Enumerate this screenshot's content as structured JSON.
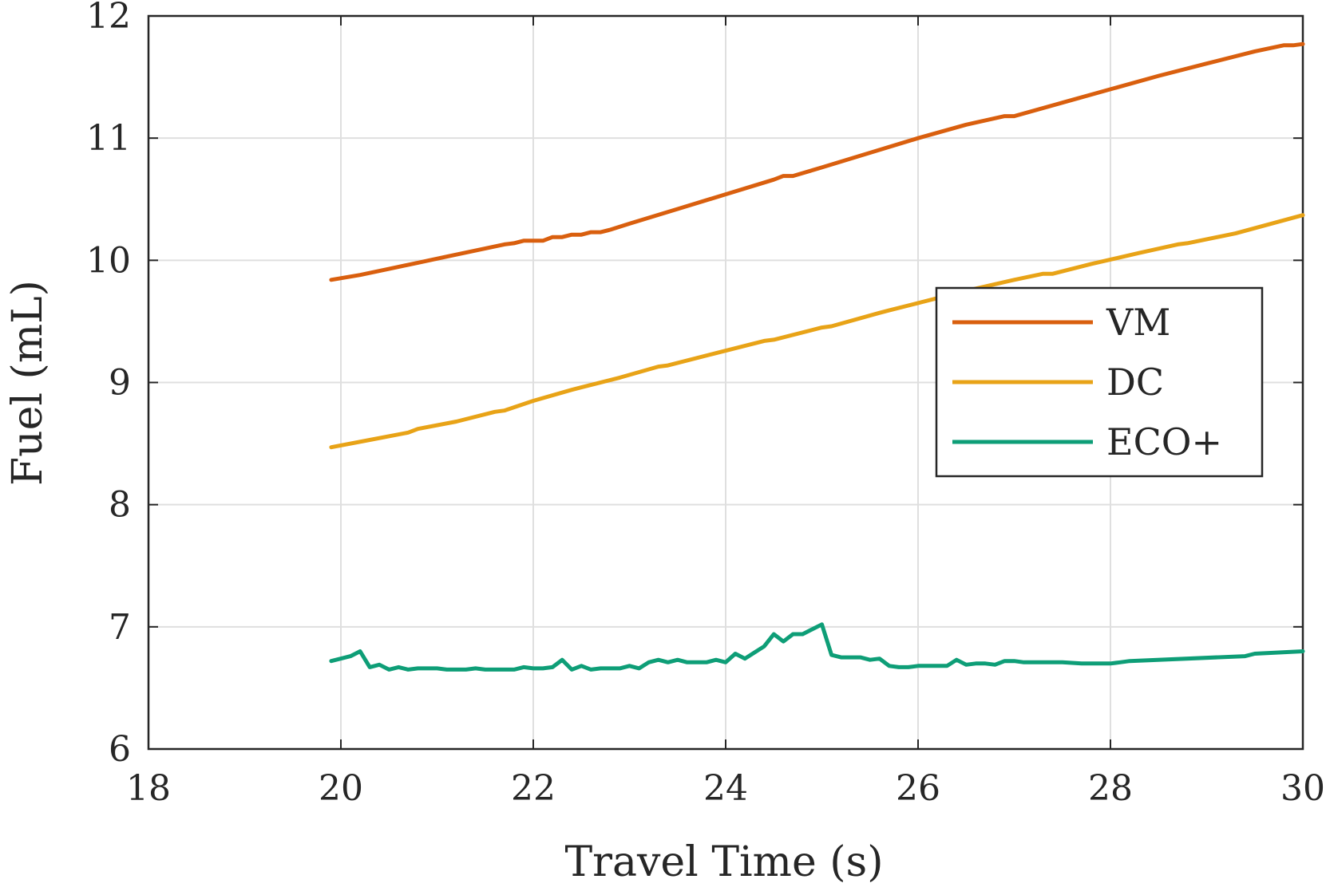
{
  "chart_data": {
    "type": "line",
    "xlabel": "Travel Time (s)",
    "ylabel": "Fuel (mL)",
    "xlim": [
      18,
      30
    ],
    "ylim": [
      6,
      12
    ],
    "xticks": [
      18,
      20,
      22,
      24,
      26,
      28,
      30
    ],
    "yticks": [
      6,
      7,
      8,
      9,
      10,
      11,
      12
    ],
    "grid": true,
    "legend_position": "right",
    "series": [
      {
        "name": "VM",
        "color": "#d95f0e",
        "x": [
          19.9,
          20.2,
          20.5,
          20.8,
          21.1,
          21.4,
          21.7,
          21.8,
          21.9,
          22.1,
          22.2,
          22.3,
          22.4,
          22.5,
          22.6,
          22.7,
          22.8,
          23.0,
          23.5,
          24.0,
          24.5,
          24.6,
          24.7,
          25.0,
          25.5,
          26.0,
          26.5,
          26.9,
          27.0,
          27.5,
          28.0,
          28.5,
          29.0,
          29.5,
          29.8,
          29.9,
          30.0
        ],
        "y": [
          9.84,
          9.88,
          9.93,
          9.98,
          10.03,
          10.08,
          10.13,
          10.14,
          10.16,
          10.16,
          10.19,
          10.19,
          10.21,
          10.21,
          10.23,
          10.23,
          10.25,
          10.3,
          10.42,
          10.54,
          10.66,
          10.69,
          10.69,
          10.76,
          10.88,
          11.0,
          11.11,
          11.18,
          11.18,
          11.29,
          11.4,
          11.51,
          11.61,
          11.71,
          11.76,
          11.76,
          11.77
        ]
      },
      {
        "name": "DC",
        "color": "#e8a317",
        "x": [
          19.9,
          20.3,
          20.7,
          20.8,
          21.2,
          21.6,
          21.7,
          22.0,
          22.4,
          22.5,
          22.9,
          23.3,
          23.4,
          23.9,
          24.4,
          24.5,
          25.0,
          25.1,
          25.6,
          25.7,
          26.0,
          26.5,
          27.0,
          27.3,
          27.4,
          27.8,
          28.3,
          28.7,
          28.8,
          29.3,
          30.0
        ],
        "y": [
          8.47,
          8.53,
          8.59,
          8.62,
          8.68,
          8.76,
          8.77,
          8.85,
          8.94,
          8.96,
          9.04,
          9.13,
          9.14,
          9.24,
          9.34,
          9.35,
          9.45,
          9.46,
          9.57,
          9.59,
          9.65,
          9.75,
          9.84,
          9.89,
          9.89,
          9.97,
          10.06,
          10.13,
          10.14,
          10.22,
          10.37
        ]
      },
      {
        "name": "ECO+",
        "color": "#0e9e77",
        "x": [
          19.9,
          20.1,
          20.2,
          20.3,
          20.4,
          20.5,
          20.6,
          20.7,
          20.8,
          20.9,
          21.0,
          21.1,
          21.2,
          21.3,
          21.4,
          21.5,
          21.6,
          21.7,
          21.8,
          21.9,
          22.0,
          22.1,
          22.2,
          22.3,
          22.4,
          22.5,
          22.6,
          22.7,
          22.8,
          22.9,
          23.0,
          23.1,
          23.2,
          23.3,
          23.4,
          23.5,
          23.6,
          23.7,
          23.8,
          23.9,
          24.0,
          24.1,
          24.2,
          24.3,
          24.4,
          24.5,
          24.6,
          24.7,
          24.8,
          24.9,
          25.0,
          25.1,
          25.2,
          25.3,
          25.4,
          25.5,
          25.6,
          25.7,
          25.8,
          25.9,
          26.0,
          26.2,
          26.3,
          26.4,
          26.5,
          26.6,
          26.7,
          26.8,
          26.9,
          27.0,
          27.1,
          27.3,
          27.5,
          27.7,
          27.9,
          28.0,
          28.1,
          28.2,
          29.4,
          29.5,
          30.0
        ],
        "y": [
          6.72,
          6.76,
          6.8,
          6.67,
          6.69,
          6.65,
          6.67,
          6.65,
          6.66,
          6.66,
          6.66,
          6.65,
          6.65,
          6.65,
          6.66,
          6.65,
          6.65,
          6.65,
          6.65,
          6.67,
          6.66,
          6.66,
          6.67,
          6.73,
          6.65,
          6.68,
          6.65,
          6.66,
          6.66,
          6.66,
          6.68,
          6.66,
          6.71,
          6.73,
          6.71,
          6.73,
          6.71,
          6.71,
          6.71,
          6.73,
          6.71,
          6.78,
          6.74,
          6.79,
          6.84,
          6.94,
          6.88,
          6.94,
          6.94,
          6.98,
          7.02,
          6.77,
          6.75,
          6.75,
          6.75,
          6.73,
          6.74,
          6.68,
          6.67,
          6.67,
          6.68,
          6.68,
          6.68,
          6.73,
          6.69,
          6.7,
          6.7,
          6.69,
          6.72,
          6.72,
          6.71,
          6.71,
          6.71,
          6.7,
          6.7,
          6.7,
          6.71,
          6.72,
          6.76,
          6.78,
          6.8
        ]
      }
    ]
  }
}
